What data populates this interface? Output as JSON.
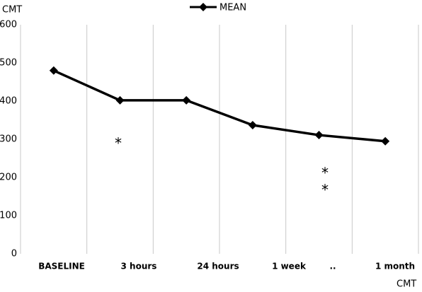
{
  "chart_data": {
    "type": "line",
    "y_label": "CMT",
    "x_label": "CMT",
    "categories": [
      "BASELINE",
      "3  hours",
      "24 hours",
      "1 week",
      "..",
      "1 month"
    ],
    "series": [
      {
        "name": "MEAN",
        "color": "#000000",
        "values": [
          480,
          402,
          402,
          337,
          311,
          295
        ]
      }
    ],
    "ylim": [
      0,
      600
    ],
    "yticks": [
      0,
      100,
      200,
      300,
      400,
      500,
      600
    ],
    "grid": "x",
    "legend": "top",
    "annotations": [
      "*",
      "*",
      "*"
    ]
  }
}
